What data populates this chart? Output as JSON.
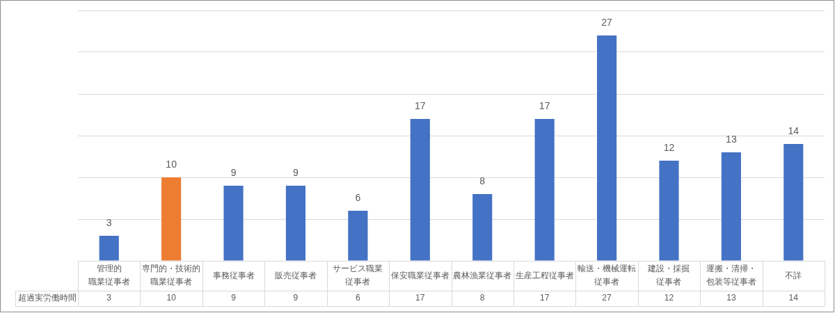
{
  "chart_data": {
    "type": "bar",
    "categories": [
      "管理的職業従事者",
      "専門的・技術的職業従事者",
      "事務従事者",
      "販売従事者",
      "サービス職業従事者",
      "保安職業従事者",
      "農林漁業従事者",
      "生産工程従事者",
      "輸送・機械運転従事者",
      "建設・採掘従事者",
      "運搬・清掃・包装等従事者",
      "不詳"
    ],
    "series": [
      {
        "name": "超過実労働時間",
        "colors": [
          "#4472c4",
          "#ed7d31",
          "#4472c4",
          "#4472c4",
          "#4472c4",
          "#4472c4",
          "#4472c4",
          "#4472c4",
          "#4472c4",
          "#4472c4",
          "#4472c4",
          "#4472c4"
        ],
        "values": [
          3,
          10,
          9,
          9,
          6,
          17,
          8,
          17,
          27,
          12,
          13,
          14
        ]
      }
    ],
    "annotations": [
      "3",
      "10",
      "9",
      "9",
      "6",
      "17",
      "8",
      "17",
      "27",
      "12",
      "13",
      "14"
    ],
    "ylim": [
      0,
      30
    ],
    "yticks": [
      {
        "value": 0,
        "label": null
      },
      {
        "value": 5,
        "label": null
      },
      {
        "value": 10,
        "label": null
      },
      {
        "value": 15,
        "label": null
      },
      {
        "value": 20,
        "label": null
      },
      {
        "value": 25,
        "label": null
      },
      {
        "value": 30,
        "label": null
      }
    ],
    "grid": "y",
    "tick_labels": "x",
    "data_labels": true
  }
}
